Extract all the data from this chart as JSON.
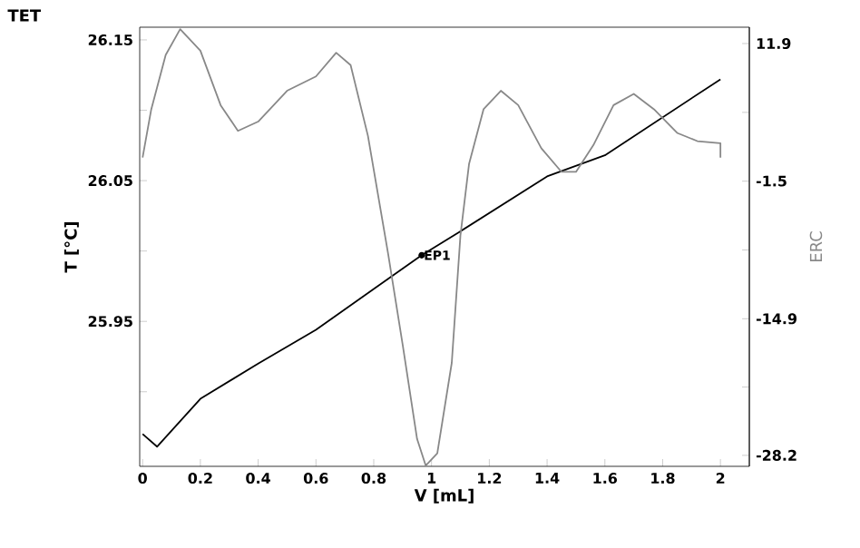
{
  "chart_data": {
    "type": "line",
    "title": "TET",
    "xlabel": "V [mL]",
    "ylabel": "T [°C]",
    "y2label": "ERC",
    "xlim": [
      -0.01,
      2.1
    ],
    "ylim": [
      25.847,
      26.159
    ],
    "y2lim": [
      -29.27,
      13.49
    ],
    "xticks": [
      0,
      0.2,
      0.4,
      0.6,
      0.8,
      1,
      1.2,
      1.4,
      1.6,
      1.8,
      2
    ],
    "yticks": [
      {
        "value": 25.9,
        "label": null
      },
      25.95,
      {
        "value": 26.0,
        "label": null
      },
      26.05,
      {
        "value": 26.1,
        "label": null
      },
      26.15
    ],
    "y2ticks": [
      -28.2,
      {
        "value": -21.55,
        "label": null
      },
      -14.9,
      {
        "value": -8.2,
        "label": null
      },
      -1.5,
      {
        "value": 5.2,
        "label": null
      },
      11.9
    ],
    "marker": "none",
    "line_style": "solid",
    "annotations": [
      {
        "text": "EP1",
        "x": 0.966,
        "y": 25.997
      }
    ],
    "series": [
      {
        "color": "#000000",
        "x": [
          0,
          0.05,
          0.2,
          0.4,
          0.6,
          0.8,
          0.966,
          1.1,
          1.4,
          1.6,
          1.8,
          2.0
        ],
        "values": [
          25.87,
          25.861,
          25.895,
          25.92,
          25.944,
          25.973,
          25.997,
          26.014,
          26.053,
          26.068,
          26.095,
          26.122
        ]
      },
      {
        "color": "#888888",
        "axis": "y2",
        "x": [
          0,
          0.03,
          0.08,
          0.13,
          0.2,
          0.27,
          0.33,
          0.4,
          0.5,
          0.6,
          0.67,
          0.72,
          0.78,
          0.85,
          0.9,
          0.95,
          0.98,
          1.02,
          1.07,
          1.1,
          1.13,
          1.18,
          1.24,
          1.3,
          1.38,
          1.45,
          1.5,
          1.56,
          1.63,
          1.7,
          1.77,
          1.85,
          1.92,
          2.0,
          2.0
        ],
        "values": [
          0.8,
          5.5,
          10.8,
          13.3,
          11.2,
          5.9,
          3.4,
          4.3,
          7.3,
          8.7,
          11.0,
          9.8,
          2.9,
          -8.6,
          -17.4,
          -26.6,
          -29.2,
          -28.0,
          -19.2,
          -6.8,
          0.2,
          5.5,
          7.3,
          5.9,
          1.7,
          -0.6,
          -0.6,
          2.0,
          5.9,
          7.0,
          5.5,
          3.2,
          2.4,
          2.2,
          0.8
        ]
      }
    ]
  }
}
